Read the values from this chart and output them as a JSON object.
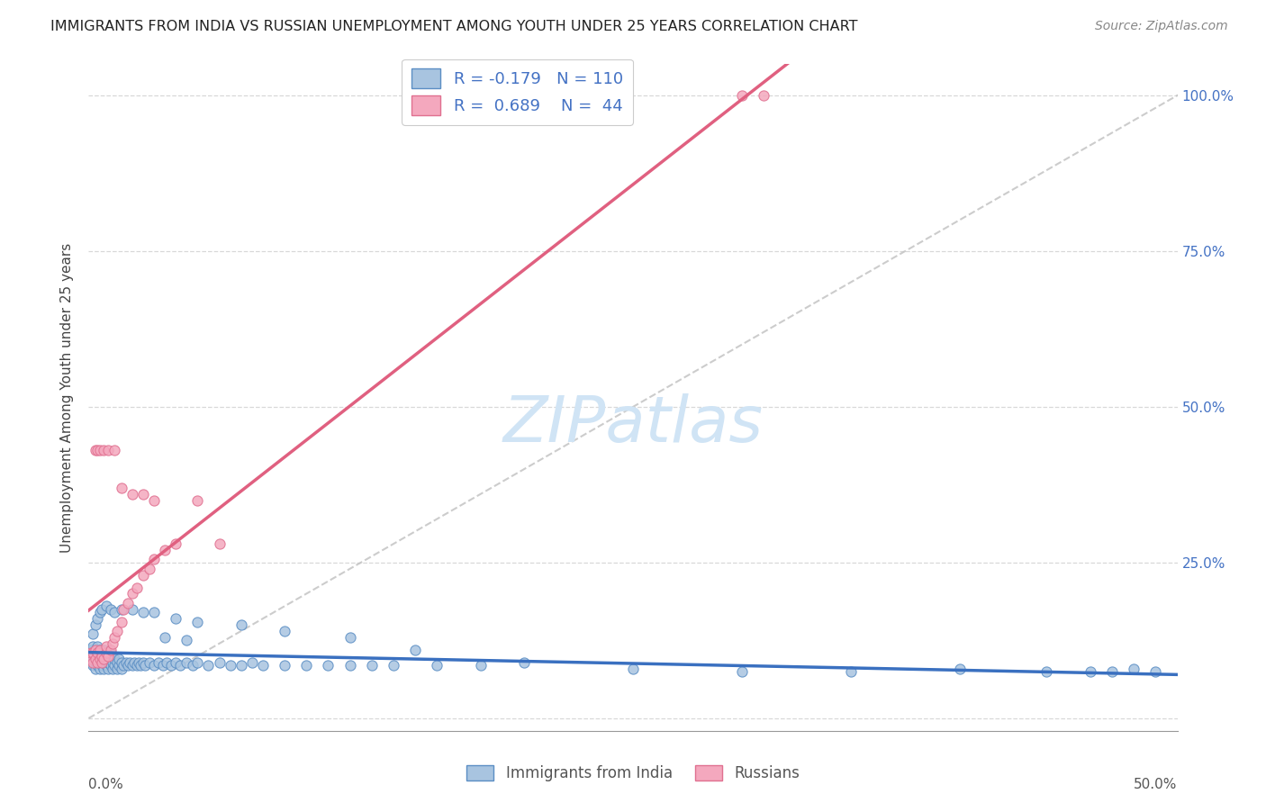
{
  "title": "IMMIGRANTS FROM INDIA VS RUSSIAN UNEMPLOYMENT AMONG YOUTH UNDER 25 YEARS CORRELATION CHART",
  "source": "Source: ZipAtlas.com",
  "ylabel": "Unemployment Among Youth under 25 years",
  "legend_label1": "Immigrants from India",
  "legend_label2": "Russians",
  "R1": -0.179,
  "N1": 110,
  "R2": 0.689,
  "N2": 44,
  "color_india_fill": "#a8c4e0",
  "color_india_edge": "#5b8ec4",
  "color_russia_fill": "#f4a8be",
  "color_russia_edge": "#e07090",
  "color_india_line": "#3a70c0",
  "color_russia_line": "#e06080",
  "color_diag_line": "#c0c0c0",
  "xlim": [
    0.0,
    0.5
  ],
  "ylim": [
    -0.02,
    1.05
  ],
  "yticks": [
    0.0,
    0.25,
    0.5,
    0.75,
    1.0
  ],
  "ytick_labels_right": [
    "",
    "25.0%",
    "50.0%",
    "75.0%",
    "100.0%"
  ],
  "india_x": [
    0.001,
    0.001,
    0.001,
    0.002,
    0.002,
    0.002,
    0.002,
    0.003,
    0.003,
    0.003,
    0.003,
    0.004,
    0.004,
    0.004,
    0.004,
    0.005,
    0.005,
    0.005,
    0.005,
    0.006,
    0.006,
    0.006,
    0.007,
    0.007,
    0.007,
    0.007,
    0.008,
    0.008,
    0.008,
    0.009,
    0.009,
    0.01,
    0.01,
    0.01,
    0.011,
    0.011,
    0.012,
    0.012,
    0.013,
    0.013,
    0.014,
    0.014,
    0.015,
    0.015,
    0.016,
    0.017,
    0.018,
    0.019,
    0.02,
    0.021,
    0.022,
    0.023,
    0.024,
    0.025,
    0.026,
    0.028,
    0.03,
    0.032,
    0.034,
    0.036,
    0.038,
    0.04,
    0.042,
    0.045,
    0.048,
    0.05,
    0.055,
    0.06,
    0.065,
    0.07,
    0.075,
    0.08,
    0.09,
    0.1,
    0.11,
    0.12,
    0.13,
    0.14,
    0.16,
    0.18,
    0.002,
    0.003,
    0.004,
    0.005,
    0.006,
    0.008,
    0.01,
    0.012,
    0.015,
    0.02,
    0.025,
    0.03,
    0.04,
    0.05,
    0.07,
    0.09,
    0.12,
    0.15,
    0.2,
    0.25,
    0.3,
    0.35,
    0.4,
    0.44,
    0.46,
    0.47,
    0.48,
    0.49,
    0.035,
    0.045
  ],
  "india_y": [
    0.1,
    0.09,
    0.11,
    0.085,
    0.095,
    0.105,
    0.115,
    0.08,
    0.09,
    0.1,
    0.11,
    0.085,
    0.095,
    0.105,
    0.115,
    0.08,
    0.09,
    0.1,
    0.11,
    0.085,
    0.095,
    0.105,
    0.08,
    0.09,
    0.1,
    0.11,
    0.085,
    0.095,
    0.105,
    0.08,
    0.09,
    0.085,
    0.095,
    0.105,
    0.08,
    0.09,
    0.085,
    0.095,
    0.08,
    0.09,
    0.085,
    0.095,
    0.08,
    0.09,
    0.085,
    0.09,
    0.085,
    0.09,
    0.085,
    0.09,
    0.085,
    0.09,
    0.085,
    0.09,
    0.085,
    0.09,
    0.085,
    0.09,
    0.085,
    0.09,
    0.085,
    0.09,
    0.085,
    0.09,
    0.085,
    0.09,
    0.085,
    0.09,
    0.085,
    0.085,
    0.09,
    0.085,
    0.085,
    0.085,
    0.085,
    0.085,
    0.085,
    0.085,
    0.085,
    0.085,
    0.135,
    0.15,
    0.16,
    0.17,
    0.175,
    0.18,
    0.175,
    0.17,
    0.175,
    0.175,
    0.17,
    0.17,
    0.16,
    0.155,
    0.15,
    0.14,
    0.13,
    0.11,
    0.09,
    0.08,
    0.075,
    0.075,
    0.08,
    0.075,
    0.075,
    0.075,
    0.08,
    0.075,
    0.13,
    0.125
  ],
  "russia_x": [
    0.001,
    0.001,
    0.002,
    0.002,
    0.003,
    0.003,
    0.004,
    0.004,
    0.005,
    0.005,
    0.006,
    0.006,
    0.007,
    0.008,
    0.008,
    0.009,
    0.01,
    0.011,
    0.012,
    0.013,
    0.015,
    0.016,
    0.018,
    0.02,
    0.022,
    0.025,
    0.028,
    0.03,
    0.035,
    0.04,
    0.003,
    0.004,
    0.005,
    0.007,
    0.009,
    0.012,
    0.015,
    0.02,
    0.025,
    0.03,
    0.3,
    0.31,
    0.05,
    0.06
  ],
  "russia_y": [
    0.095,
    0.105,
    0.09,
    0.105,
    0.095,
    0.11,
    0.09,
    0.105,
    0.095,
    0.11,
    0.09,
    0.1,
    0.095,
    0.105,
    0.115,
    0.1,
    0.11,
    0.12,
    0.13,
    0.14,
    0.155,
    0.175,
    0.185,
    0.2,
    0.21,
    0.23,
    0.24,
    0.255,
    0.27,
    0.28,
    0.43,
    0.43,
    0.43,
    0.43,
    0.43,
    0.43,
    0.37,
    0.36,
    0.36,
    0.35,
    1.0,
    1.0,
    0.35,
    0.28
  ],
  "watermark_text": "ZIPatlas",
  "watermark_color": "#d0e4f5",
  "bg_color": "#ffffff",
  "grid_color": "#d8d8d8",
  "title_fontsize": 11.5,
  "source_fontsize": 10,
  "ylabel_fontsize": 11,
  "tick_label_fontsize": 11,
  "legend_fontsize": 13
}
